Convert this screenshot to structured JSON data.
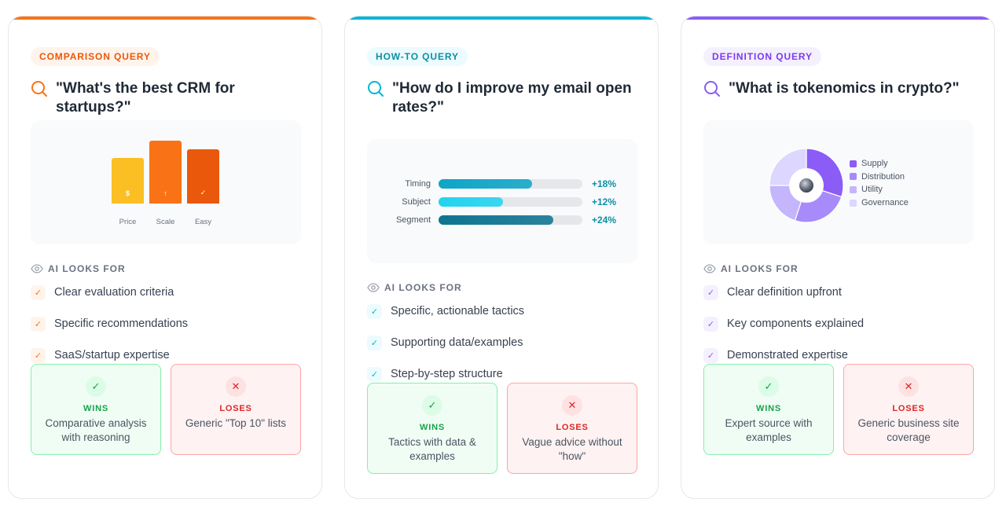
{
  "cards": [
    {
      "badge": "COMPARISON QUERY",
      "query": "\"What's the best CRM for startups?\"",
      "chart_data": {
        "type": "bar",
        "categories": [
          "Price",
          "Scale",
          "Easy"
        ],
        "values": [
          58,
          80,
          69
        ],
        "bar_symbols": [
          "$",
          "↑",
          "✓"
        ],
        "colors": [
          "#fbbf24",
          "#f97316",
          "#ea580c"
        ]
      },
      "looks_for_label": "AI LOOKS FOR",
      "criteria": [
        "Clear evaluation criteria",
        "Specific recommendations",
        "SaaS/startup expertise"
      ],
      "wins_label": "WINS",
      "wins_text": "Comparative analysis with reasoning",
      "loses_label": "LOSES",
      "loses_text": "Generic \"Top 10\" lists",
      "accent": "#f97316"
    },
    {
      "badge": "HOW-TO QUERY",
      "query": "\"How do I improve my email open rates?\"",
      "chart_data": {
        "type": "bar",
        "orientation": "horizontal",
        "categories": [
          "Timing",
          "Subject",
          "Segment"
        ],
        "values": [
          65,
          45,
          80
        ],
        "value_labels": [
          "+18%",
          "+12%",
          "+24%"
        ],
        "colors": [
          "#0ea5c6",
          "#22d3ee",
          "#0e7490"
        ]
      },
      "looks_for_label": "AI LOOKS FOR",
      "criteria": [
        "Specific, actionable tactics",
        "Supporting data/examples",
        "Step-by-step structure"
      ],
      "wins_label": "WINS",
      "wins_text": "Tactics with data & examples",
      "loses_label": "LOSES",
      "loses_text": "Vague advice without \"how\"",
      "accent": "#06b6d4"
    },
    {
      "badge": "DEFINITION QUERY",
      "query": "\"What is tokenomics in crypto?\"",
      "chart_data": {
        "type": "pie",
        "donut": true,
        "categories": [
          "Supply",
          "Distribution",
          "Utility",
          "Governance"
        ],
        "values": [
          30,
          25,
          20,
          25
        ],
        "colors": [
          "#8b5cf6",
          "#a78bfa",
          "#c4b5fd",
          "#ddd6fe"
        ],
        "legend": "right"
      },
      "looks_for_label": "AI LOOKS FOR",
      "criteria": [
        "Clear definition upfront",
        "Key components explained",
        "Demonstrated expertise"
      ],
      "wins_label": "WINS",
      "wins_text": "Expert source with examples",
      "loses_label": "LOSES",
      "loses_text": "Generic business site coverage",
      "accent": "#8b5cf6"
    }
  ],
  "icons": {
    "search": "search-icon",
    "eye": "eye-icon",
    "check": "✓",
    "cross": "✕"
  }
}
